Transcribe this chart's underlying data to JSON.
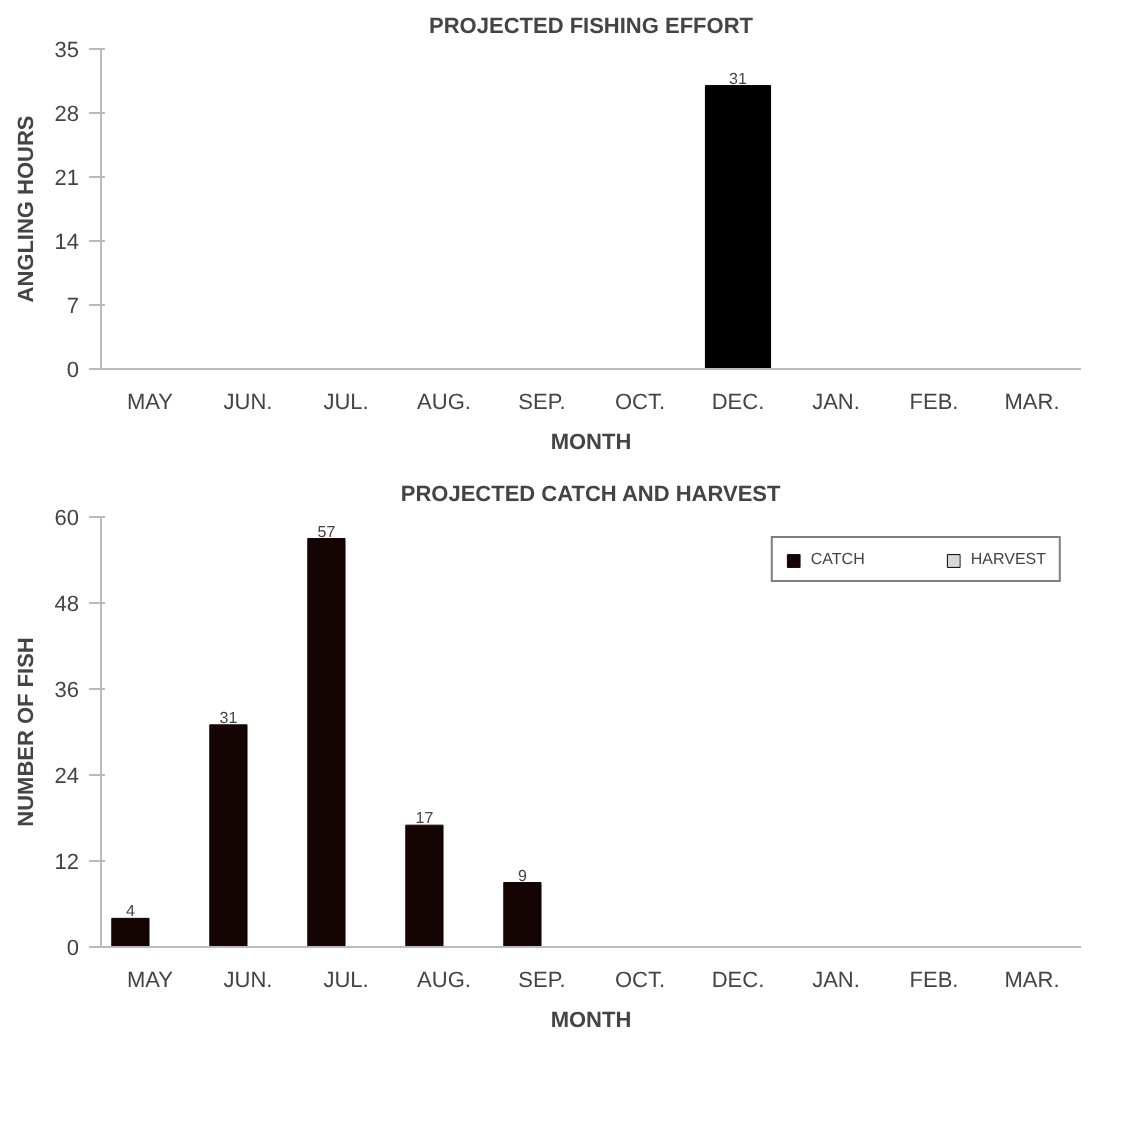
{
  "chart_data": [
    {
      "type": "bar",
      "title": "PROJECTED FISHING EFFORT",
      "xlabel": "MONTH",
      "ylabel": "ANGLING HOURS",
      "categories": [
        "MAY",
        "JUN.",
        "JUL.",
        "AUG.",
        "SEP.",
        "OCT.",
        "DEC.",
        "JAN.",
        "FEB.",
        "MAR."
      ],
      "series": [
        {
          "color": "#000000",
          "values": [
            null,
            null,
            null,
            null,
            null,
            null,
            31,
            null,
            null,
            null
          ],
          "value_labels": [
            null,
            null,
            null,
            null,
            null,
            null,
            "31",
            null,
            null,
            null
          ]
        }
      ],
      "ylim": [
        0,
        35
      ],
      "yticks": [
        0,
        7,
        14,
        21,
        28,
        35
      ],
      "grid": false
    },
    {
      "type": "bar",
      "title": "PROJECTED CATCH AND HARVEST",
      "xlabel": "MONTH",
      "ylabel": "NUMBER OF FISH",
      "categories": [
        "MAY",
        "JUN.",
        "JUL.",
        "AUG.",
        "SEP.",
        "OCT.",
        "DEC.",
        "JAN.",
        "FEB.",
        "MAR."
      ],
      "series": [
        {
          "name": "CATCH",
          "color": "#140404",
          "values": [
            4,
            31,
            57,
            17,
            9,
            null,
            null,
            null,
            null,
            null
          ],
          "value_labels": [
            "4",
            "31",
            "57",
            "17",
            "9",
            null,
            null,
            null,
            null,
            null
          ]
        },
        {
          "name": "HARVEST",
          "color": "#d8d8d8",
          "values": [
            null,
            null,
            null,
            null,
            null,
            null,
            null,
            null,
            null,
            null
          ]
        }
      ],
      "ylim": [
        0,
        60
      ],
      "yticks": [
        0,
        12,
        24,
        36,
        48,
        60
      ],
      "grid": false,
      "legend": "top right"
    }
  ]
}
